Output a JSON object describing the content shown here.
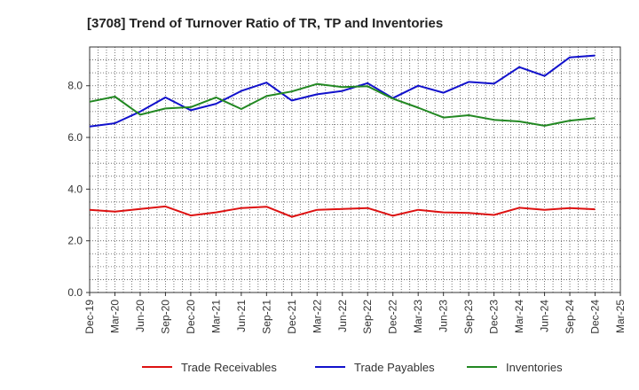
{
  "chart_data": {
    "type": "line",
    "title": "[3708]  Trend of Turnover Ratio of TR, TP and Inventories",
    "xlabel": "",
    "ylabel": "",
    "ylim": [
      0,
      9.5
    ],
    "yticks": [
      "0.0",
      "2.0",
      "4.0",
      "6.0",
      "8.0"
    ],
    "x": [
      "Dec-19",
      "Mar-20",
      "Jun-20",
      "Sep-20",
      "Dec-20",
      "Mar-21",
      "Jun-21",
      "Sep-21",
      "Dec-21",
      "Mar-22",
      "Jun-22",
      "Sep-22",
      "Dec-22",
      "Mar-23",
      "Jun-23",
      "Sep-23",
      "Dec-23",
      "Mar-24",
      "Jun-24",
      "Sep-24",
      "Dec-24",
      "Mar-25"
    ],
    "grid": true,
    "legend_position": "bottom",
    "series": [
      {
        "name": "Trade Receivables",
        "color": "#dd1111",
        "values": [
          3.2,
          3.13,
          3.23,
          3.33,
          2.98,
          3.1,
          3.27,
          3.32,
          2.93,
          3.2,
          3.23,
          3.27,
          2.97,
          3.2,
          3.1,
          3.08,
          3.0,
          3.28,
          3.2,
          3.27,
          3.22,
          null
        ]
      },
      {
        "name": "Trade Payables",
        "color": "#1111cc",
        "values": [
          6.42,
          6.55,
          7.0,
          7.55,
          7.05,
          7.3,
          7.8,
          8.12,
          7.43,
          7.67,
          7.8,
          8.1,
          7.52,
          8.0,
          7.73,
          8.15,
          8.08,
          8.72,
          8.38,
          9.1,
          9.17,
          null
        ]
      },
      {
        "name": "Inventories",
        "color": "#228822",
        "values": [
          7.38,
          7.58,
          6.88,
          7.12,
          7.17,
          7.55,
          7.1,
          7.6,
          7.78,
          8.07,
          7.95,
          7.98,
          7.5,
          7.15,
          6.77,
          6.86,
          6.68,
          6.62,
          6.45,
          6.65,
          6.75,
          null
        ]
      }
    ]
  }
}
